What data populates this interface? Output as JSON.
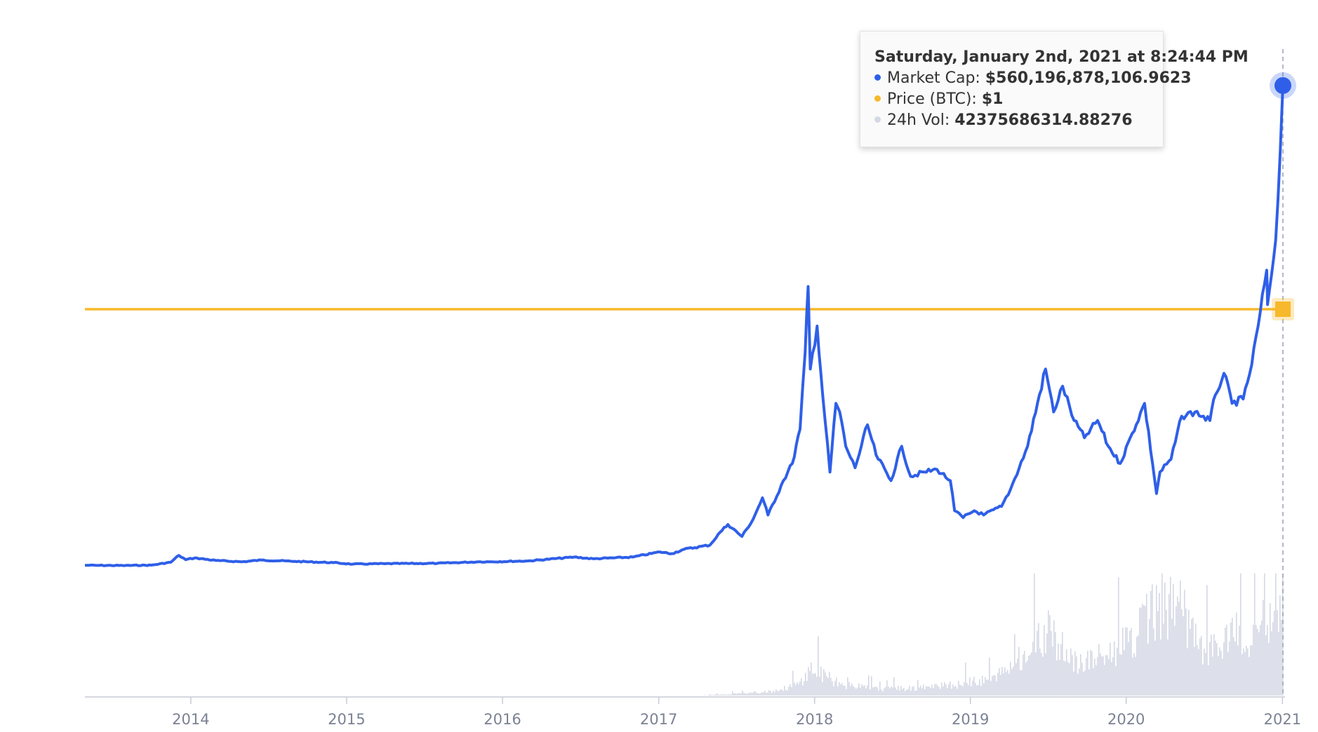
{
  "colors": {
    "market_cap": "#2f5fe8",
    "price": "#f7b82b",
    "volume": "#d4d8e4",
    "axis": "#c7cbd6",
    "tick_label": "#7b8294"
  },
  "tooltip": {
    "title": "Saturday, January 2nd, 2021 at 8:24:44 PM",
    "rows": [
      {
        "label": "Market Cap: ",
        "value": "$560,196,878,106.9623"
      },
      {
        "label": "Price (BTC): ",
        "value": "$1"
      },
      {
        "label": "24h Vol: ",
        "value": "42375686314.88276"
      }
    ]
  },
  "chart_data": {
    "type": "line",
    "title": "",
    "xlabel": "",
    "ylabel": "",
    "x_ticks": [
      "2014",
      "2015",
      "2016",
      "2017",
      "2018",
      "2019",
      "2020",
      "2021"
    ],
    "x_range": [
      "2013-04-28",
      "2021-01-02"
    ],
    "grid": false,
    "legend": "none",
    "series": [
      {
        "name": "Market Cap",
        "axis": "left",
        "points": [
          [
            "2013-04-28",
            1500000000.0
          ],
          [
            "2013-06-01",
            1300000000.0
          ],
          [
            "2013-08-01",
            1200000000.0
          ],
          [
            "2013-10-01",
            1600000000.0
          ],
          [
            "2013-11-15",
            5000000000.0
          ],
          [
            "2013-12-04",
            13000000000.0
          ],
          [
            "2013-12-20",
            8000000000.0
          ],
          [
            "2014-01-10",
            10000000000.0
          ],
          [
            "2014-03-01",
            7000000000.0
          ],
          [
            "2014-05-01",
            5500000000.0
          ],
          [
            "2014-06-15",
            7500000000.0
          ],
          [
            "2014-09-01",
            6000000000.0
          ],
          [
            "2014-12-01",
            4500000000.0
          ],
          [
            "2015-01-15",
            2800000000.0
          ],
          [
            "2015-04-01",
            3300000000.0
          ],
          [
            "2015-08-01",
            3700000000.0
          ],
          [
            "2015-11-05",
            5500000000.0
          ],
          [
            "2015-12-01",
            5500000000.0
          ],
          [
            "2016-03-01",
            6500000000.0
          ],
          [
            "2016-06-17",
            11000000000.0
          ],
          [
            "2016-08-01",
            9000000000.0
          ],
          [
            "2016-11-01",
            11000000000.0
          ],
          [
            "2017-01-04",
            17000000000.0
          ],
          [
            "2017-02-01",
            15000000000.0
          ],
          [
            "2017-03-01",
            20000000000.0
          ],
          [
            "2017-05-01",
            25000000000.0
          ],
          [
            "2017-05-25",
            40000000000.0
          ],
          [
            "2017-06-12",
            49000000000.0
          ],
          [
            "2017-07-15",
            35000000000.0
          ],
          [
            "2017-08-10",
            55000000000.0
          ],
          [
            "2017-09-01",
            80000000000.0
          ],
          [
            "2017-09-14",
            60000000000.0
          ],
          [
            "2017-10-20",
            100000000000.0
          ],
          [
            "2017-11-10",
            120000000000.0
          ],
          [
            "2017-11-28",
            160000000000.0
          ],
          [
            "2017-12-10",
            250000000000.0
          ],
          [
            "2017-12-17",
            326000000000.0
          ],
          [
            "2017-12-22",
            230000000000.0
          ],
          [
            "2018-01-07",
            280000000000.0
          ],
          [
            "2018-01-20",
            200000000000.0
          ],
          [
            "2018-02-06",
            110000000000.0
          ],
          [
            "2018-02-20",
            190000000000.0
          ],
          [
            "2018-03-01",
            180000000000.0
          ],
          [
            "2018-03-15",
            140000000000.0
          ],
          [
            "2018-04-06",
            115000000000.0
          ],
          [
            "2018-05-05",
            165000000000.0
          ],
          [
            "2018-05-25",
            130000000000.0
          ],
          [
            "2018-06-29",
            100000000000.0
          ],
          [
            "2018-07-24",
            140000000000.0
          ],
          [
            "2018-08-14",
            105000000000.0
          ],
          [
            "2018-09-15",
            110000000000.0
          ],
          [
            "2018-10-15",
            113000000000.0
          ],
          [
            "2018-11-15",
            100000000000.0
          ],
          [
            "2018-11-25",
            65000000000.0
          ],
          [
            "2018-12-15",
            57000000000.0
          ],
          [
            "2019-01-10",
            65000000000.0
          ],
          [
            "2019-02-01",
            60000000000.0
          ],
          [
            "2019-03-15",
            70000000000.0
          ],
          [
            "2019-04-05",
            90000000000.0
          ],
          [
            "2019-05-15",
            140000000000.0
          ],
          [
            "2019-06-26",
            230000000000.0
          ],
          [
            "2019-07-15",
            180000000000.0
          ],
          [
            "2019-08-05",
            210000000000.0
          ],
          [
            "2019-09-01",
            170000000000.0
          ],
          [
            "2019-09-25",
            150000000000.0
          ],
          [
            "2019-10-26",
            170000000000.0
          ],
          [
            "2019-11-20",
            140000000000.0
          ],
          [
            "2019-12-18",
            120000000000.0
          ],
          [
            "2020-01-15",
            155000000000.0
          ],
          [
            "2020-02-13",
            190000000000.0
          ],
          [
            "2020-03-12",
            85000000000.0
          ],
          [
            "2020-03-20",
            110000000000.0
          ],
          [
            "2020-04-15",
            125000000000.0
          ],
          [
            "2020-05-10",
            175000000000.0
          ],
          [
            "2020-06-10",
            180000000000.0
          ],
          [
            "2020-07-15",
            170000000000.0
          ],
          [
            "2020-07-28",
            200000000000.0
          ],
          [
            "2020-08-17",
            225000000000.0
          ],
          [
            "2020-09-05",
            190000000000.0
          ],
          [
            "2020-10-01",
            195000000000.0
          ],
          [
            "2020-10-21",
            235000000000.0
          ],
          [
            "2020-11-05",
            280000000000.0
          ],
          [
            "2020-11-25",
            345000000000.0
          ],
          [
            "2020-11-27",
            305000000000.0
          ],
          [
            "2020-12-16",
            380000000000.0
          ],
          [
            "2020-12-27",
            485000000000.0
          ],
          [
            "2021-01-02",
            560000000000.0
          ]
        ]
      },
      {
        "name": "Price (BTC)",
        "axis": "right",
        "constant": 1
      },
      {
        "name": "24h Vol",
        "type": "area",
        "axis": "volume",
        "points": [
          [
            "2013-04-28",
            0
          ],
          [
            "2017-04-01",
            20000000.0
          ],
          [
            "2017-07-01",
            800000000.0
          ],
          [
            "2017-10-01",
            2000000000.0
          ],
          [
            "2017-12-01",
            6000000000.0
          ],
          [
            "2017-12-22",
            13000000000.0
          ],
          [
            "2018-01-15",
            10000000000.0
          ],
          [
            "2018-03-01",
            5000000000.0
          ],
          [
            "2018-06-01",
            3000000000.0
          ],
          [
            "2018-09-01",
            3500000000.0
          ],
          [
            "2018-12-01",
            5000000000.0
          ],
          [
            "2019-03-01",
            8000000000.0
          ],
          [
            "2019-05-15",
            20000000000.0
          ],
          [
            "2019-07-01",
            28000000000.0
          ],
          [
            "2019-09-01",
            15000000000.0
          ],
          [
            "2019-11-01",
            18000000000.0
          ],
          [
            "2020-01-15",
            25000000000.0
          ],
          [
            "2020-03-12",
            40000000000.0
          ],
          [
            "2020-05-10",
            38000000000.0
          ],
          [
            "2020-07-01",
            18000000000.0
          ],
          [
            "2020-08-01",
            22000000000.0
          ],
          [
            "2020-09-15",
            28000000000.0
          ],
          [
            "2020-10-15",
            20000000000.0
          ],
          [
            "2020-11-20",
            35000000000.0
          ],
          [
            "2020-12-20",
            30000000000.0
          ],
          [
            "2021-01-02",
            42400000000.0
          ]
        ]
      }
    ]
  }
}
